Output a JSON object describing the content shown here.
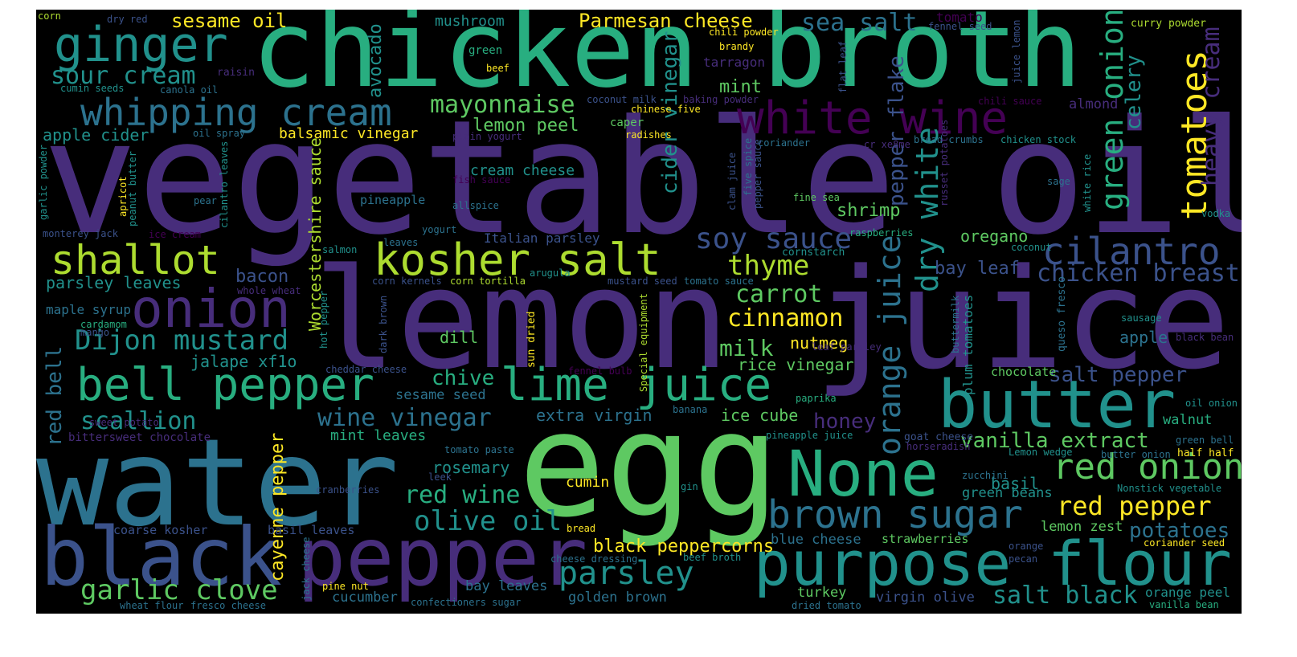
{
  "palette": {
    "purple_dark": "#440154",
    "purple": "#472d7b",
    "indigo": "#3b528b",
    "blue": "#2c728e",
    "teal": "#21918c",
    "green_teal": "#28ae80",
    "green": "#5ec962",
    "lime": "#addc30",
    "yellow": "#fde725",
    "background": "#000000"
  },
  "words": [
    {
      "t": "vegetable oil",
      "c": "#472d7b"
    },
    {
      "t": "chicken broth",
      "c": "#28ae80"
    },
    {
      "t": "lemon",
      "c": "#472d7b"
    },
    {
      "t": "juice",
      "c": "#472d7b"
    },
    {
      "t": "water",
      "c": "#2c728e"
    },
    {
      "t": "egg",
      "c": "#5ec962"
    },
    {
      "t": "black",
      "c": "#3b528b"
    },
    {
      "t": "pepper",
      "c": "#472d7b"
    },
    {
      "t": "purpose flour",
      "c": "#21918c"
    },
    {
      "t": "None",
      "c": "#28ae80"
    },
    {
      "t": "butter",
      "c": "#21918c"
    },
    {
      "t": "kosher salt",
      "c": "#addc30"
    },
    {
      "t": "white wine",
      "c": "#440154"
    },
    {
      "t": "whipping cream",
      "c": "#2c728e"
    },
    {
      "t": "ginger",
      "c": "#21918c"
    },
    {
      "t": "onion",
      "c": "#472d7b"
    },
    {
      "t": "bell pepper",
      "c": "#28ae80"
    },
    {
      "t": "lime juice",
      "c": "#28ae80"
    },
    {
      "t": "brown sugar",
      "c": "#2c728e"
    },
    {
      "t": "shallot",
      "c": "#addc30"
    },
    {
      "t": "cilantro",
      "c": "#3b528b"
    },
    {
      "t": "red onion",
      "c": "#5ec962"
    },
    {
      "t": "parsley",
      "c": "#21918c"
    },
    {
      "t": "Dijon mustard",
      "c": "#21918c"
    },
    {
      "t": "soy sauce",
      "c": "#3b528b"
    },
    {
      "t": "tomatoes",
      "c": "#fde725"
    },
    {
      "t": "garlic clove",
      "c": "#5ec962"
    },
    {
      "t": "olive oil",
      "c": "#21918c"
    },
    {
      "t": "red pepper",
      "c": "#fde725"
    },
    {
      "t": "thyme",
      "c": "#addc30"
    },
    {
      "t": "sour cream",
      "c": "#21918c"
    },
    {
      "t": "mayonnaise",
      "c": "#5ec962"
    },
    {
      "t": "scallion",
      "c": "#21918c"
    },
    {
      "t": "wine vinegar",
      "c": "#2c728e"
    },
    {
      "t": "chicken breast",
      "c": "#3b528b"
    },
    {
      "t": "carrot",
      "c": "#5ec962"
    },
    {
      "t": "cinnamon",
      "c": "#fde725"
    },
    {
      "t": "red wine",
      "c": "#28ae80"
    },
    {
      "t": "salt black",
      "c": "#21918c"
    },
    {
      "t": "vanilla extract",
      "c": "#5ec962"
    },
    {
      "t": "salt pepper",
      "c": "#3b528b"
    },
    {
      "t": "potatoes",
      "c": "#2c728e"
    },
    {
      "t": "green onion",
      "c": "#28ae80"
    },
    {
      "t": "orange juice",
      "c": "#2c728e"
    },
    {
      "t": "dry white",
      "c": "#21918c"
    },
    {
      "t": "pepper flake",
      "c": "#3b528b"
    },
    {
      "t": "heavy cream",
      "c": "#472d7b"
    },
    {
      "t": "celery",
      "c": "#21918c"
    },
    {
      "t": "cider vinegar",
      "c": "#21918c"
    },
    {
      "t": "avocado",
      "c": "#21918c"
    },
    {
      "t": "Worcestershire sauce",
      "c": "#addc30"
    },
    {
      "t": "cayenne pepper",
      "c": "#fde725"
    },
    {
      "t": "red bell",
      "c": "#2c728e"
    },
    {
      "t": "black peppercorns",
      "c": "#fde725"
    },
    {
      "t": "Parmesan cheese",
      "c": "#fde725"
    },
    {
      "t": "sea salt",
      "c": "#2c728e"
    },
    {
      "t": "sesame oil",
      "c": "#fde725"
    },
    {
      "t": "mushroom",
      "c": "#21918c"
    },
    {
      "t": "lemon peel",
      "c": "#5ec962"
    },
    {
      "t": "mint",
      "c": "#5ec962"
    },
    {
      "t": "apple cider",
      "c": "#21918c"
    },
    {
      "t": "balsamic vinegar",
      "c": "#fde725"
    },
    {
      "t": "cream cheese",
      "c": "#21918c"
    },
    {
      "t": "shrimp",
      "c": "#5ec962"
    },
    {
      "t": "oregano",
      "c": "#5ec962"
    },
    {
      "t": "bay leaf",
      "c": "#3b528b"
    },
    {
      "t": "bacon",
      "c": "#3b528b"
    },
    {
      "t": "parsley leaves",
      "c": "#21918c"
    },
    {
      "t": "milk",
      "c": "#5ec962"
    },
    {
      "t": "nutmeg",
      "c": "#fde725"
    },
    {
      "t": "rice vinegar",
      "c": "#5ec962"
    },
    {
      "t": "jalape xf1o",
      "c": "#21918c"
    },
    {
      "t": "dill",
      "c": "#5ec962"
    },
    {
      "t": "chive",
      "c": "#28ae80"
    },
    {
      "t": "honey",
      "c": "#472d7b"
    },
    {
      "t": "extra virgin",
      "c": "#2c728e"
    },
    {
      "t": "ice cube",
      "c": "#5ec962"
    },
    {
      "t": "rosemary",
      "c": "#21918c"
    },
    {
      "t": "cumin",
      "c": "#fde725"
    },
    {
      "t": "mint leaves",
      "c": "#28ae80"
    },
    {
      "t": "sesame seed",
      "c": "#2c728e"
    },
    {
      "t": "basil",
      "c": "#21918c"
    },
    {
      "t": "lemon zest",
      "c": "#5ec962"
    },
    {
      "t": "green beans",
      "c": "#21918c"
    },
    {
      "t": "blue cheese",
      "c": "#2c728e"
    },
    {
      "t": "strawberries",
      "c": "#5ec962"
    },
    {
      "t": "virgin olive",
      "c": "#3b528b"
    },
    {
      "t": "turkey",
      "c": "#5ec962"
    },
    {
      "t": "golden brown",
      "c": "#2c728e"
    },
    {
      "t": "cucumber",
      "c": "#2c728e"
    },
    {
      "t": "bay leaves",
      "c": "#2c728e"
    },
    {
      "t": "chocolate",
      "c": "#5ec962"
    },
    {
      "t": "walnut",
      "c": "#28ae80"
    },
    {
      "t": "apple",
      "c": "#2c728e"
    },
    {
      "t": "orange peel",
      "c": "#21918c"
    },
    {
      "t": "Italian parsley",
      "c": "#3b528b"
    },
    {
      "t": "pineapple",
      "c": "#2c728e"
    },
    {
      "t": "maple syrup",
      "c": "#2c728e"
    },
    {
      "t": "coarse kosher",
      "c": "#3b528b"
    },
    {
      "t": "basil leaves",
      "c": "#3b528b"
    },
    {
      "t": "almond",
      "c": "#472d7b"
    },
    {
      "t": "garlic powder",
      "c": "#21918c"
    },
    {
      "t": "chili powder",
      "c": "#fde725"
    },
    {
      "t": "curry powder",
      "c": "#addc30"
    },
    {
      "t": "tomato",
      "c": "#440154"
    },
    {
      "t": "fennel seed",
      "c": "#3b528b"
    },
    {
      "t": "tarragon",
      "c": "#472d7b"
    },
    {
      "t": "green",
      "c": "#28ae80"
    },
    {
      "t": "beef",
      "c": "#fde725"
    },
    {
      "t": "brandy",
      "c": "#fde725"
    },
    {
      "t": "raisin",
      "c": "#472d7b"
    },
    {
      "t": "canola oil",
      "c": "#2c728e"
    },
    {
      "t": "cumin seeds",
      "c": "#21918c"
    },
    {
      "t": "corn",
      "c": "#addc30"
    },
    {
      "t": "dry red",
      "c": "#3b528b"
    },
    {
      "t": "coconut milk",
      "c": "#3b528b"
    },
    {
      "t": "baking powder",
      "c": "#472d7b"
    },
    {
      "t": "chinese five",
      "c": "#fde725"
    },
    {
      "t": "caper",
      "c": "#5ec962"
    },
    {
      "t": "radishes",
      "c": "#fde725"
    },
    {
      "t": "plain yogurt",
      "c": "#472d7b"
    },
    {
      "t": "oil spray",
      "c": "#2c728e"
    },
    {
      "t": "chili sauce",
      "c": "#440154"
    },
    {
      "t": "cr xe8me",
      "c": "#472d7b"
    },
    {
      "t": "bread crumbs",
      "c": "#2c728e"
    },
    {
      "t": "chicken stock",
      "c": "#21918c"
    },
    {
      "t": "coriander",
      "c": "#2c728e"
    },
    {
      "t": "fish sauce",
      "c": "#440154"
    },
    {
      "t": "allspice",
      "c": "#2c728e"
    },
    {
      "t": "cilantro leaves",
      "c": "#21918c"
    },
    {
      "t": "apricot",
      "c": "#fde725"
    },
    {
      "t": "peanut butter",
      "c": "#21918c"
    },
    {
      "t": "pear",
      "c": "#2c728e"
    },
    {
      "t": "monterey jack",
      "c": "#3b528b"
    },
    {
      "t": "ice cream",
      "c": "#440154"
    },
    {
      "t": "yogurt",
      "c": "#2c728e"
    },
    {
      "t": "leaves",
      "c": "#2c728e"
    },
    {
      "t": "salmon",
      "c": "#21918c"
    },
    {
      "t": "whole wheat",
      "c": "#472d7b"
    },
    {
      "t": "corn kernels",
      "c": "#3b528b"
    },
    {
      "t": "corn tortilla",
      "c": "#addc30"
    },
    {
      "t": "arugula",
      "c": "#21918c"
    },
    {
      "t": "mustard seed",
      "c": "#3b528b"
    },
    {
      "t": "tomato sauce",
      "c": "#2c728e"
    },
    {
      "t": "cornstarch",
      "c": "#21918c"
    },
    {
      "t": "raspberries",
      "c": "#28ae80"
    },
    {
      "t": "coconut",
      "c": "#21918c"
    },
    {
      "t": "fine sea",
      "c": "#5ec962"
    },
    {
      "t": "five spice",
      "c": "#2c728e"
    },
    {
      "t": "pepper sauce",
      "c": "#3b528b"
    },
    {
      "t": "clam juice",
      "c": "#3b528b"
    },
    {
      "t": "russet potatoes",
      "c": "#472d7b"
    },
    {
      "t": "white rice",
      "c": "#21918c"
    },
    {
      "t": "sage",
      "c": "#2c728e"
    },
    {
      "t": "vodka",
      "c": "#21918c"
    },
    {
      "t": "cardamom",
      "c": "#28ae80"
    },
    {
      "t": "mango",
      "c": "#3b528b"
    },
    {
      "t": "hot pepper",
      "c": "#21918c"
    },
    {
      "t": "dark brown",
      "c": "#3b528b"
    },
    {
      "t": "sun dried",
      "c": "#fde725"
    },
    {
      "t": "cheddar cheese",
      "c": "#3b528b"
    },
    {
      "t": "Special equipment",
      "c": "#addc30"
    },
    {
      "t": "leaf parsley",
      "c": "#472d7b"
    },
    {
      "t": "buttermilk",
      "c": "#2c728e"
    },
    {
      "t": "plum tomatoes",
      "c": "#21918c"
    },
    {
      "t": "queso fresco",
      "c": "#2c728e"
    },
    {
      "t": "sausage",
      "c": "#21918c"
    },
    {
      "t": "black bean",
      "c": "#472d7b"
    },
    {
      "t": "fennel bulb",
      "c": "#440154"
    },
    {
      "t": "paprika",
      "c": "#28ae80"
    },
    {
      "t": "banana",
      "c": "#2c728e"
    },
    {
      "t": "oil onion",
      "c": "#21918c"
    },
    {
      "t": "sweet potato",
      "c": "#472d7b"
    },
    {
      "t": "bittersweet chocolate",
      "c": "#472d7b"
    },
    {
      "t": "tomato paste",
      "c": "#2c728e"
    },
    {
      "t": "pineapple juice",
      "c": "#21918c"
    },
    {
      "t": "goat cheese",
      "c": "#3b528b"
    },
    {
      "t": "horseradish",
      "c": "#472d7b"
    },
    {
      "t": "Lemon wedge",
      "c": "#21918c"
    },
    {
      "t": "green bell",
      "c": "#2c728e"
    },
    {
      "t": "butter onion",
      "c": "#2c728e"
    },
    {
      "t": "half half",
      "c": "#fde725"
    },
    {
      "t": "leek",
      "c": "#3b528b"
    },
    {
      "t": "zucchini",
      "c": "#2c728e"
    },
    {
      "t": "Nonstick vegetable",
      "c": "#21918c"
    },
    {
      "t": "cranberries",
      "c": "#3b528b"
    },
    {
      "t": "gin",
      "c": "#21918c"
    },
    {
      "t": "bread",
      "c": "#fde725"
    },
    {
      "t": "orange",
      "c": "#3b528b"
    },
    {
      "t": "pecan",
      "c": "#3b528b"
    },
    {
      "t": "coriander seed",
      "c": "#fde725"
    },
    {
      "t": "cheese dressing",
      "c": "#2c728e"
    },
    {
      "t": "beef broth",
      "c": "#21918c"
    },
    {
      "t": "jack cheese",
      "c": "#2c728e"
    },
    {
      "t": "pine nut",
      "c": "#fde725"
    },
    {
      "t": "wheat flour",
      "c": "#2c728e"
    },
    {
      "t": "fresco cheese",
      "c": "#2c728e"
    },
    {
      "t": "confectioners sugar",
      "c": "#2c728e"
    },
    {
      "t": "dried tomato",
      "c": "#2c728e"
    },
    {
      "t": "vanilla bean",
      "c": "#28ae80"
    },
    {
      "t": "juice lemon",
      "c": "#3b528b"
    },
    {
      "t": "flat leaf",
      "c": "#3b528b"
    }
  ]
}
